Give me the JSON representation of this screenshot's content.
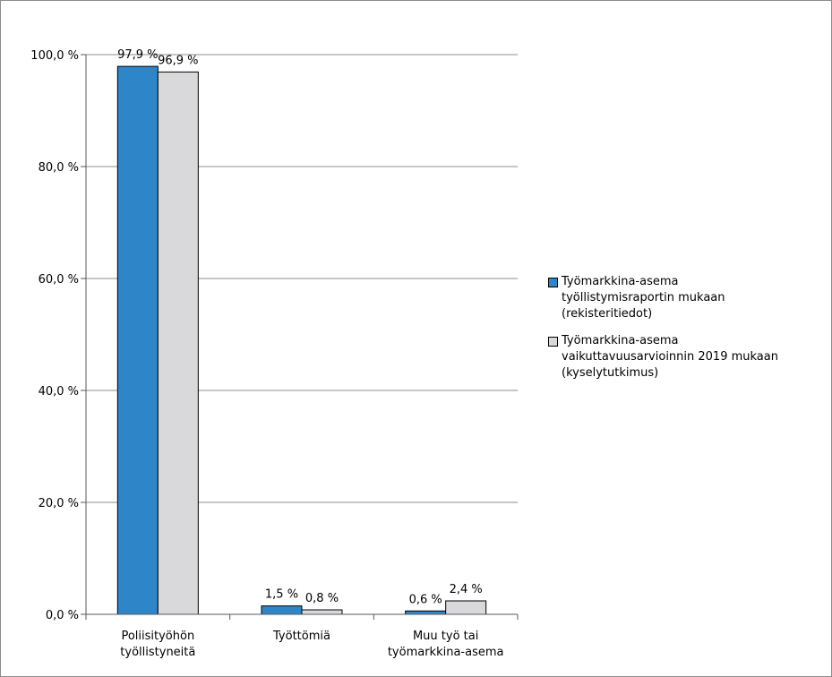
{
  "chart_data": {
    "type": "bar",
    "categories": [
      "Poliisityöhön\ntyöllistyneitä",
      "Työttömiä",
      "Muu työ tai\ntyömarkkina-asema"
    ],
    "series": [
      {
        "name": "Työmarkkina-asema\ntyöllistymisraportin mukaan\n(rekisteritiedot)",
        "values": [
          97.9,
          1.5,
          0.6
        ],
        "labels": [
          "97,9 %",
          "1,5 %",
          "0,6 %"
        ],
        "color": "#2e86c9"
      },
      {
        "name": "Työmarkkina-asema\nvaikuttavuusarvioinnin 2019 mukaan\n(kyselytutkimus)",
        "values": [
          96.9,
          0.8,
          2.4
        ],
        "labels": [
          "96,9 %",
          "0,8 %",
          "2,4 %"
        ],
        "color": "#d9d9db"
      }
    ],
    "ylim": [
      0,
      100
    ],
    "yticks": [
      0,
      20,
      40,
      60,
      80,
      100
    ],
    "ytick_labels": [
      "0,0 %",
      "20,0 %",
      "40,0 %",
      "60,0 %",
      "80,0 %",
      "100,0 %"
    ],
    "grid": true,
    "legend_position": "right"
  }
}
